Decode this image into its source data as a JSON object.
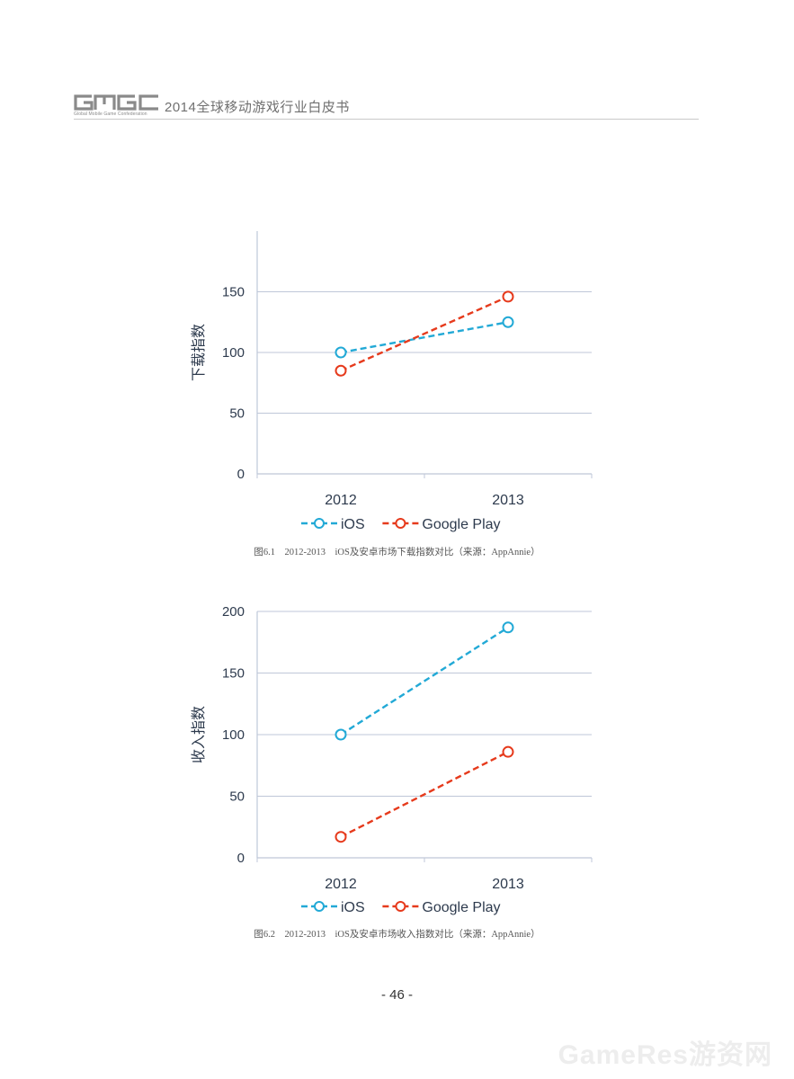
{
  "header": {
    "logo_text": "GMGC",
    "logo_subtitle": "Global Mobile Game Confederation",
    "doc_title": "2014全球移动游戏行业白皮书"
  },
  "colors": {
    "ios": "#22A9D6",
    "google_play": "#E63A1C",
    "grid": "#bfc7d8",
    "axis_text": "#2d3a4d"
  },
  "chart_data": [
    {
      "type": "line",
      "ylabel": "下载指数",
      "categories": [
        "2012",
        "2013"
      ],
      "ylim": [
        0,
        200
      ],
      "yticks": [
        0,
        50,
        100,
        150
      ],
      "series": [
        {
          "name": "iOS",
          "values": [
            100,
            125
          ]
        },
        {
          "name": "Google Play",
          "values": [
            85,
            146
          ]
        }
      ],
      "legend": "bottom"
    },
    {
      "type": "line",
      "ylabel": "收入指数",
      "categories": [
        "2012",
        "2013"
      ],
      "ylim": [
        0,
        200
      ],
      "yticks": [
        0,
        50,
        100,
        150,
        200
      ],
      "series": [
        {
          "name": "iOS",
          "values": [
            100,
            187
          ]
        },
        {
          "name": "Google Play",
          "values": [
            17,
            86
          ]
        }
      ],
      "legend": "bottom"
    }
  ],
  "captions": [
    "图6.1　2012-2013　iOS及安卓市场下载指数对比（来源：AppAnnie）",
    "图6.2　2012-2013　iOS及安卓市场收入指数对比（来源：AppAnnie）"
  ],
  "page_number": "- 46 -",
  "watermark": "GameRes游资网"
}
